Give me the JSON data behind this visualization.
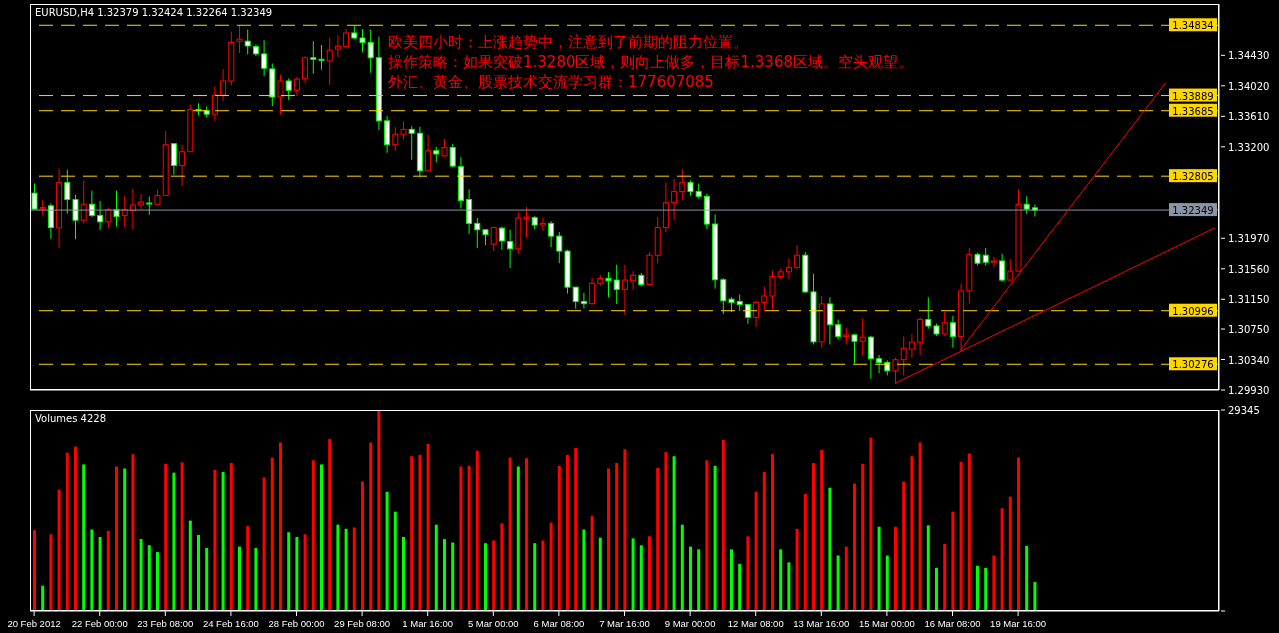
{
  "chart_data": [
    {
      "type": "candlestick",
      "title": "EURUSD,H4 1.32379 1.32424 1.32264 1.32349",
      "annotations": [
        "欧美四小时：上涨趋势中，注意到了前期的阻力位置。",
        "操作策略：如果突破1.3280区域，则向上做多，目标1.3368区域。空头观望。",
        "外汇、黄金、股票技术交流学习群：177607085"
      ],
      "categories": [
        null,
        null,
        null,
        null,
        null,
        null,
        null,
        null,
        null,
        null,
        null,
        null,
        null,
        null,
        null,
        null,
        null,
        null,
        null,
        null,
        null,
        null,
        null,
        null,
        null,
        null,
        null,
        null,
        null,
        null,
        null,
        null,
        null,
        null,
        null,
        null,
        null,
        null,
        null,
        null,
        null,
        null,
        null,
        null,
        null,
        null,
        null,
        null,
        null,
        null,
        null,
        null,
        null,
        null,
        null,
        null,
        null,
        null,
        null,
        null,
        null,
        null,
        null,
        null,
        null,
        null,
        null,
        null,
        null,
        null,
        null,
        null,
        null,
        null,
        null,
        null,
        null,
        null,
        null,
        null,
        null,
        null,
        null,
        null,
        null,
        null,
        null,
        null,
        null,
        null,
        null,
        null,
        null,
        null,
        null,
        null,
        null,
        null,
        null,
        null,
        null,
        null,
        null,
        null,
        null,
        null,
        null,
        null,
        null,
        null,
        null,
        null,
        null,
        null,
        null,
        null,
        null,
        null,
        null,
        null,
        null,
        null,
        null,
        null,
        null,
        null,
        null,
        null,
        null,
        null,
        null,
        null,
        null,
        null,
        null,
        null,
        null,
        null,
        null,
        null,
        null,
        null,
        null,
        null,
        null
      ],
      "ohlc": [
        [
          1.32577,
          1.32706,
          1.32363,
          1.32363
        ],
        [
          1.32367,
          1.32483,
          1.32277,
          1.32384
        ],
        [
          1.32406,
          1.3244,
          1.31964,
          1.32114
        ],
        [
          1.3211,
          1.32907,
          1.31836,
          1.32718
        ],
        [
          1.32718,
          1.32894,
          1.32299,
          1.32491
        ],
        [
          1.32491,
          1.32555,
          1.31956,
          1.32213
        ],
        [
          1.32213,
          1.32744,
          1.3217,
          1.32427
        ],
        [
          1.32427,
          1.32611,
          1.32256,
          1.32277
        ],
        [
          1.32277,
          1.3247,
          1.3208,
          1.32191
        ],
        [
          1.32191,
          1.32384,
          1.32106,
          1.32354
        ],
        [
          1.32354,
          1.32611,
          1.32127,
          1.32264
        ],
        [
          1.32277,
          1.32534,
          1.32119,
          1.32354
        ],
        [
          1.32341,
          1.32637,
          1.32093,
          1.32418
        ],
        [
          1.32418,
          1.32564,
          1.32363,
          1.32457
        ],
        [
          1.32444,
          1.32534,
          1.32286,
          1.32431
        ],
        [
          1.32427,
          1.3262,
          1.32418,
          1.32547
        ],
        [
          1.32547,
          1.33412,
          1.32547,
          1.33228
        ],
        [
          1.33241,
          1.33241,
          1.32825,
          1.3295
        ],
        [
          1.3295,
          1.33228,
          1.32675,
          1.33134
        ],
        [
          1.33134,
          1.33768,
          1.33134,
          1.33699
        ],
        [
          1.33703,
          1.33785,
          1.33626,
          1.33686
        ],
        [
          1.33686,
          1.33742,
          1.33596,
          1.33639
        ],
        [
          1.33639,
          1.34012,
          1.33549,
          1.33896
        ],
        [
          1.33896,
          1.34247,
          1.33815,
          1.34085
        ],
        [
          1.34085,
          1.34748,
          1.34025,
          1.34603
        ],
        [
          1.3462,
          1.34834,
          1.34461,
          1.34646
        ],
        [
          1.3462,
          1.34774,
          1.3444,
          1.34556
        ],
        [
          1.34547,
          1.34577,
          1.34419,
          1.34449
        ],
        [
          1.34449,
          1.34633,
          1.34149,
          1.34256
        ],
        [
          1.34247,
          1.3432,
          1.33746,
          1.3387
        ],
        [
          1.3387,
          1.3417,
          1.33635,
          1.34085
        ],
        [
          1.34085,
          1.34119,
          1.33828,
          1.3396
        ],
        [
          1.3396,
          1.3414,
          1.33883,
          1.3411
        ],
        [
          1.34115,
          1.34419,
          1.34055,
          1.34397
        ],
        [
          1.34397,
          1.3462,
          1.34183,
          1.34376
        ],
        [
          1.34376,
          1.34569,
          1.34235,
          1.34363
        ],
        [
          1.34354,
          1.34667,
          1.34032,
          1.345
        ],
        [
          1.34513,
          1.34697,
          1.34406,
          1.34551
        ],
        [
          1.34547,
          1.34783,
          1.34534,
          1.34731
        ],
        [
          1.34731,
          1.34834,
          1.34646,
          1.34663
        ],
        [
          1.34663,
          1.34783,
          1.3447,
          1.34603
        ],
        [
          1.34603,
          1.34774,
          1.34196,
          1.34397
        ],
        [
          1.34397,
          1.3468,
          1.33425,
          1.33549
        ],
        [
          1.33549,
          1.33613,
          1.33121,
          1.33228
        ],
        [
          1.33228,
          1.33463,
          1.33147,
          1.33369
        ],
        [
          1.33369,
          1.33541,
          1.33297,
          1.33434
        ],
        [
          1.33434,
          1.33476,
          1.33027,
          1.33382
        ],
        [
          1.33382,
          1.33468,
          1.32791,
          1.32877
        ],
        [
          1.32877,
          1.33361,
          1.32877,
          1.33147
        ],
        [
          1.33147,
          1.33198,
          1.32992,
          1.33104
        ],
        [
          1.33078,
          1.33305,
          1.33069,
          1.3319
        ],
        [
          1.3319,
          1.33241,
          1.3292,
          1.32941
        ],
        [
          1.32933,
          1.33061,
          1.32371,
          1.32478
        ],
        [
          1.32491,
          1.32628,
          1.32029,
          1.3217
        ],
        [
          1.3217,
          1.32243,
          1.31836,
          1.32084
        ],
        [
          1.32084,
          1.32093,
          1.31879,
          1.3202
        ],
        [
          1.31892,
          1.32127,
          1.31798,
          1.32114
        ],
        [
          1.32106,
          1.32127,
          1.31815,
          1.31934
        ],
        [
          1.31926,
          1.32084,
          1.31571,
          1.31828
        ],
        [
          1.31828,
          1.3232,
          1.31763,
          1.32243
        ],
        [
          1.32238,
          1.32393,
          1.31986,
          1.32256
        ],
        [
          1.32247,
          1.32268,
          1.32093,
          1.32148
        ],
        [
          1.32148,
          1.32243,
          1.32071,
          1.3217
        ],
        [
          1.3217,
          1.322,
          1.31849,
          1.31999
        ],
        [
          1.31999,
          1.32054,
          1.31635,
          1.31798
        ],
        [
          1.31798,
          1.31815,
          1.31228,
          1.31313
        ],
        [
          1.31313,
          1.31313,
          1.31022,
          1.31121
        ],
        [
          1.31121,
          1.31236,
          1.31027,
          1.31091
        ],
        [
          1.31091,
          1.31442,
          1.31078,
          1.31365
        ],
        [
          1.31365,
          1.31476,
          1.31335,
          1.31429
        ],
        [
          1.31429,
          1.31515,
          1.31177,
          1.31399
        ],
        [
          1.31408,
          1.31614,
          1.31087,
          1.31283
        ],
        [
          1.31283,
          1.31614,
          1.30937,
          1.31408
        ],
        [
          1.31399,
          1.31528,
          1.31279,
          1.31472
        ],
        [
          1.31472,
          1.31506,
          1.31322,
          1.31348
        ],
        [
          1.31348,
          1.31776,
          1.31348,
          1.31742
        ],
        [
          1.31742,
          1.32256,
          1.31635,
          1.32114
        ],
        [
          1.32114,
          1.32718,
          1.32054,
          1.32448
        ],
        [
          1.32448,
          1.3277,
          1.32221,
          1.32598
        ],
        [
          1.32598,
          1.32898,
          1.32491,
          1.32718
        ],
        [
          1.32718,
          1.32748,
          1.32543,
          1.32598
        ],
        [
          1.32598,
          1.32705,
          1.32504,
          1.32534
        ],
        [
          1.32534,
          1.32568,
          1.32093,
          1.32161
        ],
        [
          1.32161,
          1.3229,
          1.31292,
          1.31412
        ],
        [
          1.31412,
          1.31434,
          1.3095,
          1.31129
        ],
        [
          1.31151,
          1.31177,
          1.3098,
          1.31108
        ],
        [
          1.31121,
          1.31215,
          1.30992,
          1.31078
        ],
        [
          1.31078,
          1.31087,
          1.30821,
          1.30907
        ],
        [
          1.30907,
          1.3113,
          1.30778,
          1.31108
        ],
        [
          1.31108,
          1.31322,
          1.30992,
          1.31194
        ],
        [
          1.31194,
          1.31536,
          1.31014,
          1.31455
        ],
        [
          1.31455,
          1.31562,
          1.31421,
          1.31519
        ],
        [
          1.31519,
          1.31699,
          1.31421,
          1.31579
        ],
        [
          1.31579,
          1.31879,
          1.31549,
          1.31742
        ],
        [
          1.31742,
          1.31785,
          1.31236,
          1.31249
        ],
        [
          1.31249,
          1.31493,
          1.30542,
          1.30577
        ],
        [
          1.30577,
          1.31194,
          1.305,
          1.31087
        ],
        [
          1.31087,
          1.31177,
          1.30542,
          1.30808
        ],
        [
          1.30808,
          1.30877,
          1.30607,
          1.3065
        ],
        [
          1.3065,
          1.30765,
          1.30542,
          1.30671
        ],
        [
          1.30671,
          1.30684,
          1.30286,
          1.30585
        ],
        [
          1.30585,
          1.30894,
          1.30401,
          1.30641
        ],
        [
          1.30641,
          1.30659,
          1.3008,
          1.3035
        ],
        [
          1.3035,
          1.30401,
          1.30157,
          1.30299
        ],
        [
          1.30299,
          1.30328,
          1.30127,
          1.30188
        ],
        [
          1.30188,
          1.30363,
          1.3002,
          1.30337
        ],
        [
          1.30337,
          1.3065,
          1.30127,
          1.30491
        ],
        [
          1.30478,
          1.3068,
          1.30359,
          1.30573
        ],
        [
          1.30573,
          1.30907,
          1.30401,
          1.30877
        ],
        [
          1.30877,
          1.31177,
          1.30757,
          1.30791
        ],
        [
          1.30791,
          1.30821,
          1.30659,
          1.30684
        ],
        [
          1.30684,
          1.3098,
          1.30659,
          1.30834
        ],
        [
          1.30834,
          1.30928,
          1.305,
          1.3065
        ],
        [
          1.3065,
          1.31356,
          1.30448,
          1.31262
        ],
        [
          1.31262,
          1.3184,
          1.31091,
          1.3175
        ],
        [
          1.3175,
          1.31776,
          1.31605,
          1.31635
        ],
        [
          1.31742,
          1.3184,
          1.31601,
          1.31648
        ],
        [
          1.31648,
          1.3172,
          1.31583,
          1.31665
        ],
        [
          1.31665,
          1.31763,
          1.31386,
          1.31408
        ],
        [
          1.31408,
          1.3169,
          1.31399,
          1.31528
        ],
        [
          1.31528,
          1.32628,
          1.31528,
          1.32427
        ],
        [
          1.32427,
          1.32534,
          1.32299,
          1.32363
        ],
        [
          1.32379,
          1.32424,
          1.32264,
          1.32349
        ],
        null,
        null,
        null,
        null,
        null,
        null,
        null,
        null,
        null,
        null,
        null,
        null,
        null,
        null,
        null,
        null,
        null,
        null,
        null,
        null,
        null,
        null
      ],
      "colors": [
        "#00ff00",
        "#ff0000",
        "#00ff00",
        "#ff0000",
        "#00ff00",
        "#00ff00",
        "#ff0000",
        "#00ff00",
        "#00ff00",
        "#ff0000",
        "#00ff00",
        "#ff0000",
        "#ff0000",
        "#ff0000",
        "#00ff00",
        "#ff0000",
        "#ff0000",
        "#00ff00",
        "#ff0000",
        "#ff0000",
        "#00ff00",
        "#00ff00",
        "#ff0000",
        "#ff0000",
        "#ff0000",
        "#ff0000",
        "#00ff00",
        "#00ff00",
        "#00ff00",
        "#00ff00",
        "#ff0000",
        "#00ff00",
        "#ff0000",
        "#ff0000",
        "#00ff00",
        "#00ff00",
        "#ff0000",
        "#ff0000",
        "#ff0000",
        "#00ff00",
        "#00ff00",
        "#00ff00",
        "#00ff00",
        "#00ff00",
        "#ff0000",
        "#ff0000",
        "#00ff00",
        "#00ff00",
        "#ff0000",
        "#00ff00",
        "#ff0000",
        "#00ff00",
        "#00ff00",
        "#00ff00",
        "#00ff00",
        "#00ff00",
        "#ff0000",
        "#00ff00",
        "#00ff00",
        "#ff0000",
        "#ff0000",
        "#00ff00",
        "#ff0000",
        "#00ff00",
        "#00ff00",
        "#00ff00",
        "#00ff00",
        "#00ff00",
        "#ff0000",
        "#ff0000",
        "#00ff00",
        "#00ff00",
        "#ff0000",
        "#ff0000",
        "#00ff00",
        "#ff0000",
        "#ff0000",
        "#ff0000",
        "#ff0000",
        "#ff0000",
        "#00ff00",
        "#00ff00",
        "#00ff00",
        "#00ff00",
        "#00ff00",
        "#00ff00",
        "#00ff00",
        "#00ff00",
        "#ff0000",
        "#ff0000",
        "#ff0000",
        "#ff0000",
        "#ff0000",
        "#ff0000",
        "#00ff00",
        "#00ff00",
        "#ff0000",
        "#00ff00",
        "#00ff00",
        "#ff0000",
        "#00ff00",
        "#ff0000",
        "#00ff00",
        "#00ff00",
        "#00ff00",
        "#ff0000",
        "#ff0000",
        "#ff0000",
        "#ff0000",
        "#00ff00",
        "#00ff00",
        "#ff0000",
        "#00ff00",
        "#ff0000",
        "#ff0000",
        "#00ff00",
        "#00ff00",
        "#ff0000",
        "#00ff00",
        "#ff0000",
        "#ff0000",
        "#00ff00",
        "#00ff00",
        null,
        null,
        null,
        null,
        null,
        null,
        null,
        null,
        null,
        null,
        null,
        null,
        null,
        null,
        null,
        null,
        null,
        null,
        null,
        null,
        null,
        null
      ],
      "ylim": [
        1.2993,
        1.3512
      ],
      "yticks": [
        {
          "value": 1.3443,
          "label": "1.34430"
        },
        {
          "value": 1.3402,
          "label": "1.34020"
        },
        {
          "value": 1.3361,
          "label": "1.33610"
        },
        {
          "value": 1.332,
          "label": "1.33200"
        },
        {
          "value": 1.3197,
          "label": "1.31970"
        },
        {
          "value": 1.3156,
          "label": "1.31560"
        },
        {
          "value": 1.3115,
          "label": "1.31150"
        },
        {
          "value": 1.3075,
          "label": "1.30750"
        },
        {
          "value": 1.3034,
          "label": "1.30340"
        },
        {
          "value": 1.2993,
          "label": "1.29930"
        }
      ],
      "tick_labels": "y",
      "ref_lines": [
        {
          "axis": "y",
          "value": 1.34834,
          "label": "1.34834",
          "color": "#ffd700",
          "line_style": "dashed"
        },
        {
          "axis": "y",
          "value": 1.33889,
          "label": "1.33889",
          "color": "#ffd700",
          "line_style": "dashed"
        },
        {
          "axis": "y",
          "value": 1.33685,
          "label": "1.33685",
          "color": "#ffd700",
          "line_style": "dashed"
        },
        {
          "axis": "y",
          "value": 1.32805,
          "label": "1.32805",
          "color": "#ffd700",
          "line_style": "dashed"
        },
        {
          "axis": "y",
          "value": 1.32349,
          "label": "1.32349",
          "color": "#8a96a6",
          "line_style": "solid"
        },
        {
          "axis": "y",
          "value": 1.30996,
          "label": "1.30996",
          "color": "#ffd700",
          "line_style": "dashed"
        },
        {
          "axis": "y",
          "value": 1.30276,
          "label": "1.30276",
          "color": "#ffd700",
          "line_style": "dashed"
        }
      ],
      "series": [
        {
          "type": "line",
          "color": "#ff0000",
          "values": [
            null,
            null,
            null,
            null,
            null,
            null,
            null,
            null,
            null,
            null,
            null,
            null,
            null,
            null,
            null,
            null,
            null,
            null,
            null,
            null,
            null,
            null,
            null,
            null,
            null,
            null,
            null,
            null,
            null,
            null,
            null,
            null,
            null,
            null,
            null,
            null,
            null,
            null,
            null,
            null,
            null,
            null,
            null,
            null,
            null,
            null,
            null,
            null,
            null,
            null,
            null,
            null,
            null,
            null,
            null,
            null,
            null,
            null,
            null,
            null,
            null,
            null,
            null,
            null,
            null,
            null,
            null,
            null,
            null,
            null,
            null,
            null,
            null,
            null,
            null,
            null,
            null,
            null,
            null,
            null,
            null,
            null,
            null,
            null,
            null,
            null,
            null,
            null,
            null,
            null,
            null,
            null,
            null,
            null,
            null,
            null,
            null,
            null,
            null,
            null,
            null,
            null,
            null,
            null,
            null,
            1.3002,
            null,
            null,
            null,
            null,
            null,
            null,
            null,
            null,
            null,
            null,
            null,
            null,
            null,
            null,
            null,
            null,
            null,
            null,
            null,
            null,
            null,
            null,
            null,
            null,
            null,
            null,
            null,
            null,
            null,
            null,
            null,
            null,
            null,
            null,
            null,
            null,
            null,
            null,
            1.3211
          ]
        },
        {
          "type": "line",
          "color": "#ff0000",
          "values": [
            null,
            null,
            null,
            null,
            null,
            null,
            null,
            null,
            null,
            null,
            null,
            null,
            null,
            null,
            null,
            null,
            null,
            null,
            null,
            null,
            null,
            null,
            null,
            null,
            null,
            null,
            null,
            null,
            null,
            null,
            null,
            null,
            null,
            null,
            null,
            null,
            null,
            null,
            null,
            null,
            null,
            null,
            null,
            null,
            null,
            null,
            null,
            null,
            null,
            null,
            null,
            null,
            null,
            null,
            null,
            null,
            null,
            null,
            null,
            null,
            null,
            null,
            null,
            null,
            null,
            null,
            null,
            null,
            null,
            null,
            null,
            null,
            null,
            null,
            null,
            null,
            null,
            null,
            null,
            null,
            null,
            null,
            null,
            null,
            null,
            null,
            null,
            null,
            null,
            null,
            null,
            null,
            null,
            null,
            null,
            null,
            null,
            null,
            null,
            null,
            null,
            null,
            null,
            null,
            null,
            null,
            null,
            null,
            null,
            null,
            null,
            null,
            null,
            1.3047,
            null,
            null,
            null,
            null,
            null,
            null,
            null,
            null,
            null,
            null,
            null,
            null,
            null,
            null,
            null,
            null,
            null,
            null,
            null,
            null,
            null,
            null,
            null,
            null,
            1.3406,
            null,
            null,
            null,
            null,
            null,
            null
          ]
        }
      ]
    },
    {
      "type": "bar",
      "title": "Volumes 4228",
      "categories": [
        "20 Feb 2012",
        null,
        null,
        null,
        null,
        null,
        null,
        null,
        "22 Feb 00:00",
        null,
        null,
        null,
        null,
        null,
        null,
        null,
        "23 Feb 08:00",
        null,
        null,
        null,
        null,
        null,
        null,
        null,
        "24 Feb 16:00",
        null,
        null,
        null,
        null,
        null,
        null,
        null,
        "28 Feb 00:00",
        null,
        null,
        null,
        null,
        null,
        null,
        null,
        "29 Feb 08:00",
        null,
        null,
        null,
        null,
        null,
        null,
        null,
        "1 Mar 16:00",
        null,
        null,
        null,
        null,
        null,
        null,
        null,
        "5 Mar 00:00",
        null,
        null,
        null,
        null,
        null,
        null,
        null,
        "6 Mar 08:00",
        null,
        null,
        null,
        null,
        null,
        null,
        null,
        "7 Mar 16:00",
        null,
        null,
        null,
        null,
        null,
        null,
        null,
        "9 Mar 00:00",
        null,
        null,
        null,
        null,
        null,
        null,
        null,
        "12 Mar 08:00",
        null,
        null,
        null,
        null,
        null,
        null,
        null,
        "13 Mar 16:00",
        null,
        null,
        null,
        null,
        null,
        null,
        null,
        "15 Mar 00:00",
        null,
        null,
        null,
        null,
        null,
        null,
        null,
        "16 Mar 08:00",
        null,
        null,
        null,
        null,
        null,
        null,
        null,
        "19 Mar 16:00",
        null,
        null,
        null,
        null,
        null,
        null,
        null,
        null,
        null,
        null,
        null,
        null,
        null,
        null,
        null,
        null,
        null,
        null,
        null,
        null,
        null,
        null,
        null,
        null
      ],
      "values": [
        11800,
        3700,
        11200,
        17700,
        23100,
        24000,
        21400,
        11900,
        10800,
        11700,
        21100,
        20800,
        22900,
        10500,
        9600,
        8600,
        21500,
        20200,
        21700,
        13200,
        11100,
        9200,
        20600,
        20300,
        21600,
        9400,
        12400,
        9200,
        19500,
        22400,
        24600,
        11500,
        10800,
        11200,
        22000,
        21400,
        25100,
        12600,
        12000,
        12200,
        18900,
        24600,
        29345,
        17400,
        14500,
        10800,
        22600,
        22800,
        24400,
        12600,
        10500,
        10000,
        21100,
        21200,
        23400,
        9900,
        10300,
        12800,
        22400,
        21100,
        22300,
        9900,
        10300,
        12900,
        21200,
        22800,
        23800,
        11900,
        13900,
        10700,
        20800,
        21600,
        23600,
        10600,
        9600,
        10900,
        20900,
        23200,
        22600,
        12600,
        9400,
        9000,
        22000,
        21200,
        25000,
        9000,
        6900,
        10900,
        17400,
        20300,
        22900,
        9000,
        7100,
        12000,
        17100,
        21600,
        23500,
        18000,
        8100,
        9400,
        18600,
        21500,
        25300,
        12300,
        8100,
        12300,
        18900,
        22600,
        24600,
        12500,
        6300,
        9800,
        14500,
        21800,
        23000,
        6600,
        6300,
        8100,
        15000,
        16700,
        22400,
        9500,
        4228,
        null,
        null,
        null,
        null,
        null,
        null,
        null,
        null,
        null,
        null,
        null,
        null,
        null,
        null,
        null,
        null,
        null,
        null,
        null,
        null,
        null,
        null
      ],
      "colors": [
        "#ff0000",
        "#00ff00",
        "#ff0000",
        "#ff0000",
        "#ff0000",
        "#ff0000",
        "#00ff00",
        "#00ff00",
        "#00ff00",
        "#ff0000",
        "#ff0000",
        "#00ff00",
        "#ff0000",
        "#00ff00",
        "#00ff00",
        "#00ff00",
        "#ff0000",
        "#00ff00",
        "#ff0000",
        "#00ff00",
        "#00ff00",
        "#00ff00",
        "#ff0000",
        "#00ff00",
        "#ff0000",
        "#00ff00",
        "#ff0000",
        "#00ff00",
        "#ff0000",
        "#ff0000",
        "#ff0000",
        "#00ff00",
        "#00ff00",
        "#ff0000",
        "#ff0000",
        "#00ff00",
        "#ff0000",
        "#00ff00",
        "#00ff00",
        "#ff0000",
        "#ff0000",
        "#ff0000",
        "#ff0000",
        "#00ff00",
        "#00ff00",
        "#00ff00",
        "#ff0000",
        "#ff0000",
        "#ff0000",
        "#00ff00",
        "#00ff00",
        "#00ff00",
        "#ff0000",
        "#ff0000",
        "#ff0000",
        "#00ff00",
        "#ff0000",
        "#ff0000",
        "#ff0000",
        "#00ff00",
        "#ff0000",
        "#00ff00",
        "#ff0000",
        "#ff0000",
        "#ff0000",
        "#ff0000",
        "#ff0000",
        "#00ff00",
        "#ff0000",
        "#00ff00",
        "#ff0000",
        "#ff0000",
        "#ff0000",
        "#00ff00",
        "#00ff00",
        "#ff0000",
        "#ff0000",
        "#ff0000",
        "#00ff00",
        "#00ff00",
        "#00ff00",
        "#00ff00",
        "#ff0000",
        "#00ff00",
        "#ff0000",
        "#00ff00",
        "#00ff00",
        "#ff0000",
        "#ff0000",
        "#ff0000",
        "#ff0000",
        "#00ff00",
        "#00ff00",
        "#ff0000",
        "#ff0000",
        "#ff0000",
        "#ff0000",
        "#00ff00",
        "#00ff00",
        "#ff0000",
        "#ff0000",
        "#ff0000",
        "#ff0000",
        "#00ff00",
        "#00ff00",
        "#ff0000",
        "#ff0000",
        "#ff0000",
        "#ff0000",
        "#00ff00",
        "#00ff00",
        "#ff0000",
        "#ff0000",
        "#ff0000",
        "#ff0000",
        "#00ff00",
        "#00ff00",
        "#ff0000",
        "#ff0000",
        "#ff0000",
        "#ff0000",
        "#00ff00",
        "#00ff00",
        null,
        null,
        null,
        null,
        null,
        null,
        null,
        null,
        null,
        null,
        null,
        null,
        null,
        null,
        null,
        null,
        null,
        null,
        null,
        null,
        null,
        null
      ],
      "ylim": [
        0,
        29345
      ],
      "yticks": [
        0,
        29345
      ]
    }
  ]
}
